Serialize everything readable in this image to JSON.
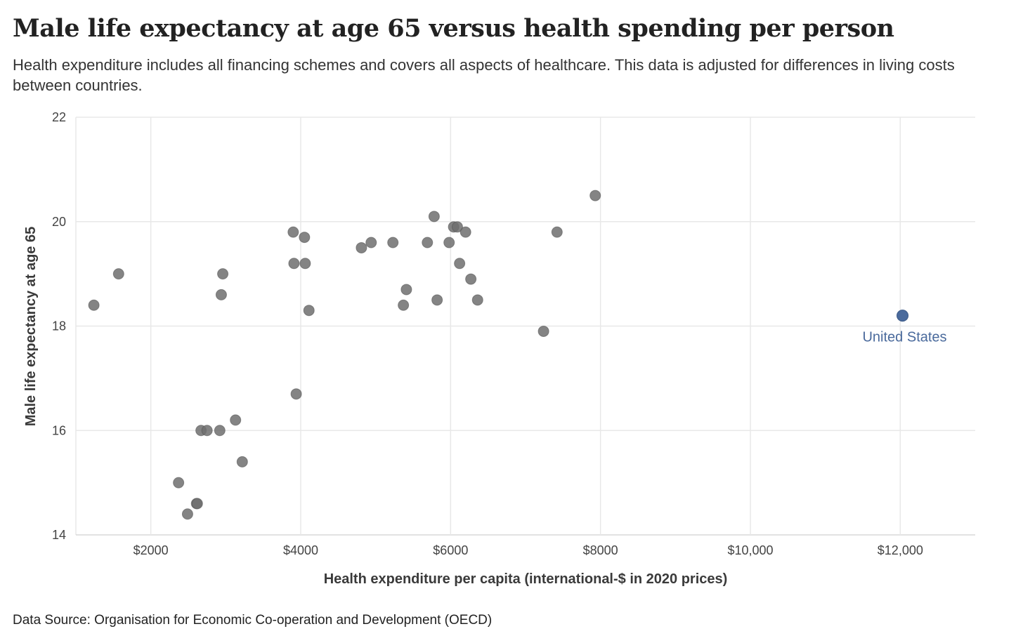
{
  "title": "Male life expectancy at age 65 versus health spending per person",
  "subtitle": "Health expenditure includes all financing schemes and covers all aspects of healthcare. This data is adjusted for differences in living costs between countries.",
  "source": "Data Source: Organisation for Economic Co-operation and Development (OECD)",
  "colors": {
    "point": "#6e6e6e",
    "highlight": "#4a6a9c",
    "grid": "#e8e8e8"
  },
  "chart_data": {
    "type": "scatter",
    "title": "Male life expectancy at age 65 versus health spending per person",
    "xlabel": "Health expenditure per capita (international-$ in 2020 prices)",
    "ylabel": "Male life expectancy at age 65",
    "xlim": [
      1000,
      13000
    ],
    "ylim": [
      14,
      22
    ],
    "xticks": [
      2000,
      4000,
      6000,
      8000,
      10000,
      12000
    ],
    "xtick_labels": [
      "$2000",
      "$4000",
      "$6000",
      "$8000",
      "$10,000",
      "$12,000"
    ],
    "yticks": [
      14,
      16,
      18,
      20,
      22
    ],
    "ytick_labels": [
      "14",
      "16",
      "18",
      "20",
      "22"
    ],
    "grid": true,
    "points": [
      [
        1240,
        18.4
      ],
      [
        1570,
        19.0
      ],
      [
        2370,
        15.0
      ],
      [
        2490,
        14.4
      ],
      [
        2610,
        14.6
      ],
      [
        2620,
        14.6
      ],
      [
        2670,
        16.0
      ],
      [
        2750,
        16.0
      ],
      [
        2920,
        16.0
      ],
      [
        2940,
        18.6
      ],
      [
        2960,
        19.0
      ],
      [
        3130,
        16.2
      ],
      [
        3220,
        15.4
      ],
      [
        3900,
        19.8
      ],
      [
        3910,
        19.2
      ],
      [
        3940,
        16.7
      ],
      [
        4050,
        19.7
      ],
      [
        4060,
        19.2
      ],
      [
        4110,
        18.3
      ],
      [
        4810,
        19.5
      ],
      [
        4940,
        19.6
      ],
      [
        5230,
        19.6
      ],
      [
        5370,
        18.4
      ],
      [
        5410,
        18.7
      ],
      [
        5690,
        19.6
      ],
      [
        5780,
        20.1
      ],
      [
        5820,
        18.5
      ],
      [
        5980,
        19.6
      ],
      [
        6040,
        19.9
      ],
      [
        6090,
        19.9
      ],
      [
        6120,
        19.2
      ],
      [
        6200,
        19.8
      ],
      [
        6270,
        18.9
      ],
      [
        6360,
        18.5
      ],
      [
        7240,
        17.9
      ],
      [
        7420,
        19.8
      ],
      [
        7930,
        20.5
      ]
    ],
    "highlight": {
      "label": "United States",
      "x": 12030,
      "y": 18.2
    }
  }
}
